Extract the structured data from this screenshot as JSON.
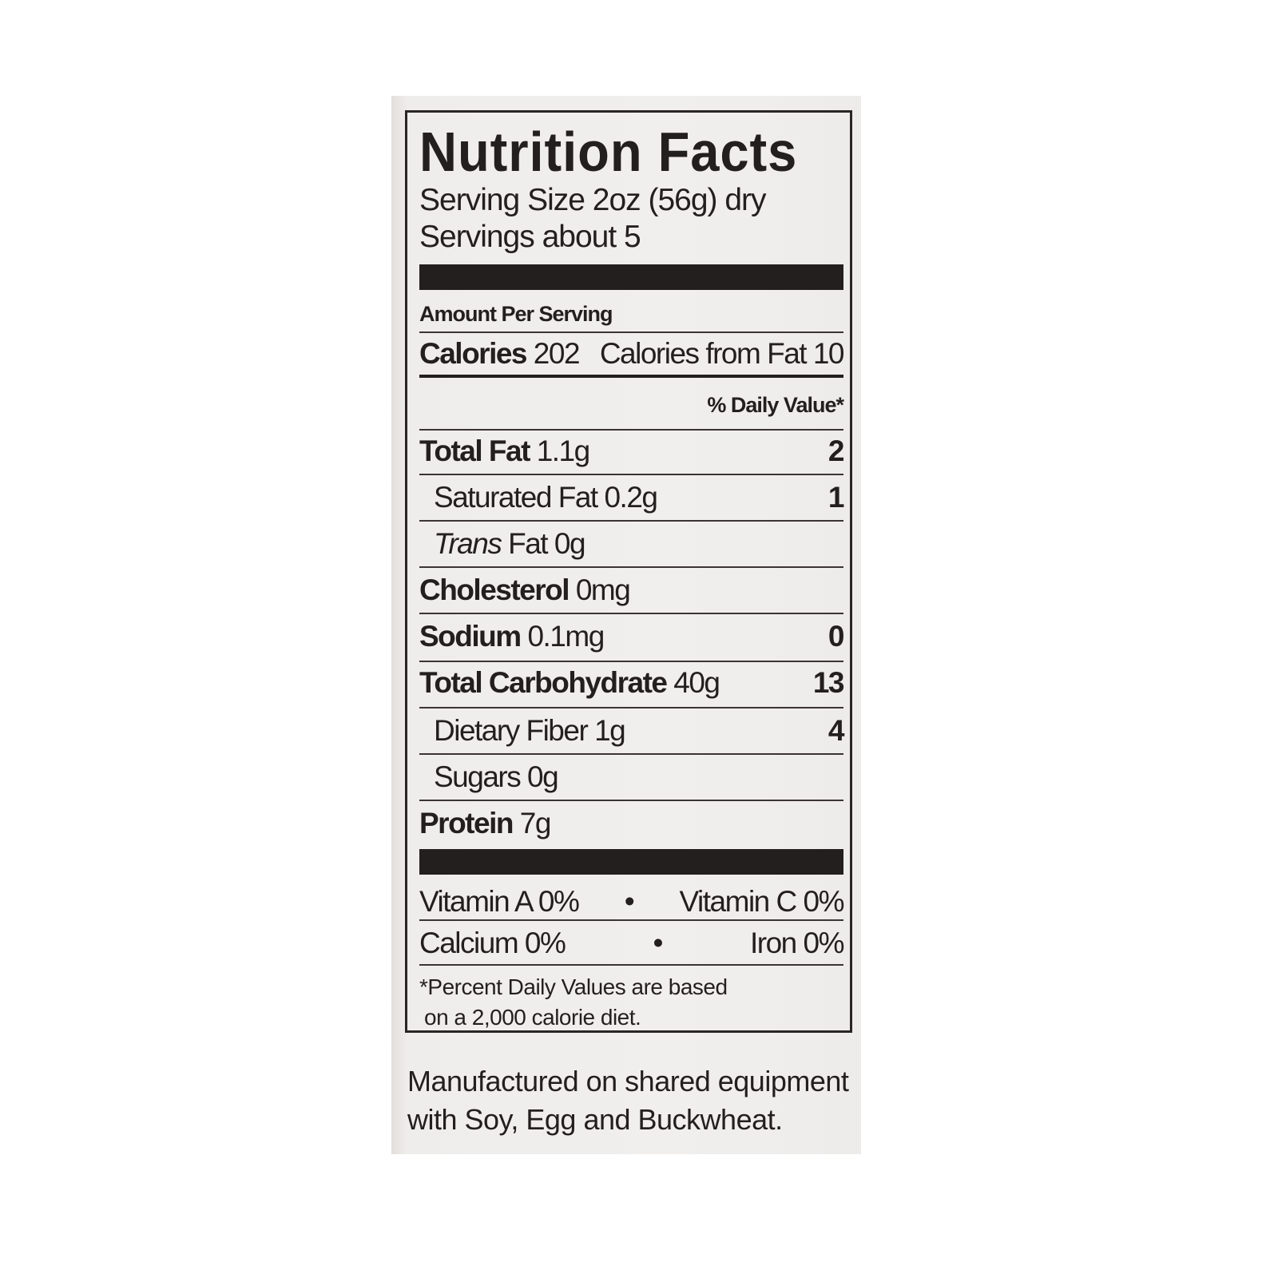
{
  "label": {
    "title": "Nutrition Facts",
    "serving_size": "Serving Size 2oz (56g) dry",
    "servings": "Servings about 5",
    "amount_per_serving": "Amount Per Serving",
    "calories_label": "Calories",
    "calories_value": "202",
    "calories_from_fat": "Calories from Fat 10",
    "daily_value_header": "% Daily Value*",
    "nutrients": [
      {
        "name": "Total Fat",
        "amount": "1.1g",
        "dv": "2"
      },
      {
        "name": "Saturated Fat",
        "amount": "0.2g",
        "dv": "1"
      },
      {
        "name": "Trans",
        "name_suffix": "Fat",
        "amount": "0g",
        "dv": ""
      },
      {
        "name": "Cholesterol",
        "amount": "0mg",
        "dv": ""
      },
      {
        "name": "Sodium",
        "amount": "0.1mg",
        "dv": "0"
      },
      {
        "name": "Total Carbohydrate",
        "amount": "40g",
        "dv": "13"
      },
      {
        "name": "Dietary Fiber",
        "amount": "1g",
        "dv": "4"
      },
      {
        "name": "Sugars",
        "amount": "0g",
        "dv": ""
      },
      {
        "name": "Protein",
        "amount": "7g",
        "dv": ""
      }
    ],
    "vitamins": [
      {
        "left": "Vitamin A 0%",
        "bullet": "•",
        "right": "Vitamin C 0%"
      },
      {
        "left": "Calcium 0%",
        "bullet": "•",
        "right": "Iron 0%"
      }
    ],
    "footnote_line1": "*Percent Daily Values are based",
    "footnote_line2": "on a 2,000 calorie diet."
  },
  "allergen": {
    "line1": "Manufactured on shared equipment",
    "line2": "with Soy, Egg and Buckwheat."
  }
}
